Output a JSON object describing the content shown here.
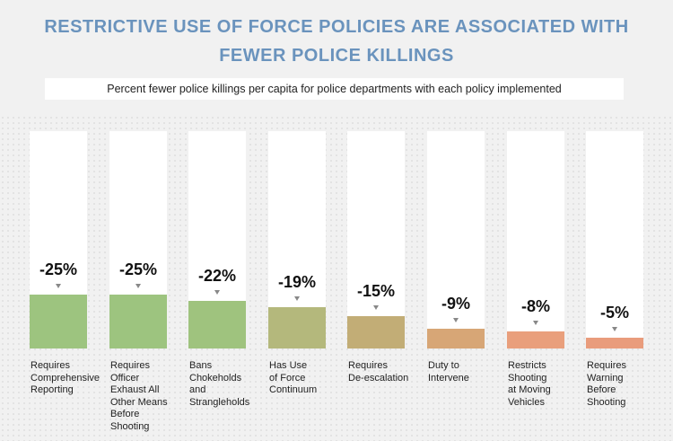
{
  "chart_data": {
    "type": "bar",
    "title": "RESTRICTIVE USE OF FORCE POLICIES ARE ASSOCIATED WITH FEWER POLICE KILLINGS",
    "subtitle": "Percent fewer police killings per capita for police departments with each policy implemented",
    "categories": [
      "Requires\nComprehensive\nReporting",
      "Requires\nOfficer\nExhaust All\nOther Means\nBefore\nShooting",
      "Bans\nChokeholds\nand\nStrangleholds",
      "Has Use\nof Force\nContinuum",
      "Requires\nDe-escalation",
      "Duty to\nIntervene",
      "Restricts\nShooting\nat Moving\nVehicles",
      "Requires\nWarning\nBefore\nShooting"
    ],
    "values": [
      -25,
      -25,
      -22,
      -19,
      -15,
      -9,
      -8,
      -5
    ],
    "data_labels": [
      "-25%",
      "-25%",
      "-22%",
      "-19%",
      "-15%",
      "-9%",
      "-8%",
      "-5%"
    ],
    "colors": [
      "#9dc47f",
      "#9dc47f",
      "#9fc37e",
      "#b4b87c",
      "#c2ad76",
      "#d7a676",
      "#e99f7c",
      "#e99c7c"
    ],
    "ylim": [
      0,
      100
    ],
    "grid": false,
    "legend": "none"
  }
}
